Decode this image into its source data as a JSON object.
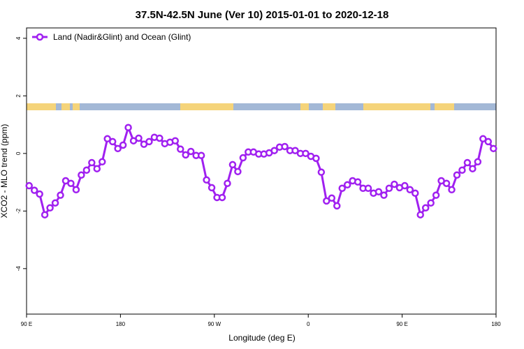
{
  "chart_data": {
    "type": "line",
    "title": "37.5N-42.5N June (Ver 10)   2015-01-01 to 2020-12-18",
    "xlabel": "Longitude (deg E)",
    "ylabel": "XCO2 - MLO trend (ppm)",
    "xlim": [
      90,
      540
    ],
    "ylim": [
      -5.58,
      4.36
    ],
    "xticks": [
      {
        "value": 90,
        "label": "90 E"
      },
      180,
      {
        "value": 270,
        "label": "90 W"
      },
      {
        "value": 360,
        "label": "0"
      },
      {
        "value": 450,
        "label": "90 E"
      },
      {
        "value": 540,
        "label": "180"
      }
    ],
    "yticks": [
      4,
      2,
      0,
      -2,
      -4
    ],
    "legend": "top-left",
    "series": [
      {
        "name": "Land (Nadir&Glint) and Ocean (Glint)",
        "color": "#a020f0",
        "x": [
          92.5,
          97.5,
          102.5,
          107.5,
          112.5,
          117.5,
          122.5,
          127.5,
          132.5,
          137.5,
          142.5,
          147.5,
          152.5,
          157.5,
          162.5,
          167.5,
          172.5,
          177.5,
          182.5,
          187.5,
          192.5,
          197.5,
          202.5,
          207.5,
          212.5,
          217.5,
          222.5,
          227.5,
          232.5,
          237.5,
          242.5,
          247.5,
          252.5,
          257.5,
          262.5,
          267.5,
          272.5,
          277.5,
          282.5,
          287.5,
          292.5,
          297.5,
          302.5,
          307.5,
          312.5,
          317.5,
          322.5,
          327.5,
          332.5,
          337.5,
          342.5,
          347.5,
          352.5,
          357.5,
          362.5,
          367.5,
          372.5,
          377.5,
          382.5,
          387.5,
          392.5,
          397.5,
          402.5,
          407.5,
          412.5,
          417.5,
          422.5,
          427.5,
          432.5,
          437.5,
          442.5,
          447.5,
          452.5,
          457.5,
          462.5,
          467.5,
          472.5,
          477.5,
          482.5,
          487.5,
          492.5,
          497.5,
          502.5,
          507.5,
          512.5,
          517.5,
          522.5,
          527.5,
          532.5,
          537.5
        ],
        "values": [
          -1.12,
          -1.28,
          -1.41,
          -2.13,
          -1.89,
          -1.72,
          -1.45,
          -0.95,
          -1.04,
          -1.26,
          -0.75,
          -0.58,
          -0.32,
          -0.53,
          -0.29,
          0.51,
          0.41,
          0.17,
          0.29,
          0.9,
          0.44,
          0.53,
          0.32,
          0.41,
          0.56,
          0.53,
          0.34,
          0.39,
          0.44,
          0.15,
          -0.05,
          0.07,
          -0.07,
          -0.07,
          -0.92,
          -1.19,
          -1.53,
          -1.53,
          -1.04,
          -0.39,
          -0.63,
          -0.15,
          0.05,
          0.05,
          -0.02,
          -0.02,
          0.02,
          0.1,
          0.22,
          0.24,
          0.1,
          0.1,
          0,
          0,
          -0.1,
          -0.17,
          -0.65,
          -1.65,
          -1.55,
          -1.82,
          -1.21,
          -1.09,
          -0.95,
          -0.99,
          -1.21,
          -1.21,
          -1.38,
          -1.33,
          -1.45,
          -1.21,
          -1.07,
          -1.19,
          -1.12,
          -1.26,
          -1.38,
          -2.13,
          -1.89,
          -1.72,
          -1.45,
          -0.95,
          -1.04,
          -1.26,
          -0.75,
          -0.58,
          -0.32,
          -0.53,
          -0.29,
          0.51,
          0.41,
          0.17
        ]
      }
    ]
  }
}
